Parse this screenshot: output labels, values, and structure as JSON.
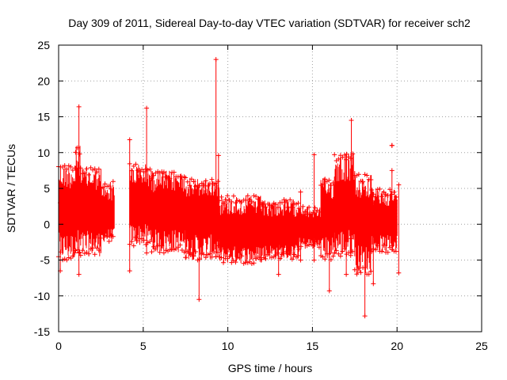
{
  "chart_data": {
    "type": "line",
    "title": "Day 309 of 2011, Sidereal Day-to-day VTEC variation (SDTVAR) for receiver sch2",
    "xlabel": "GPS time / hours",
    "ylabel": "SDTVAR / TECUs",
    "xlim": [
      0,
      25
    ],
    "ylim": [
      -15,
      25
    ],
    "xticks": [
      0,
      5,
      10,
      15,
      20,
      25
    ],
    "yticks": [
      -15,
      -10,
      -5,
      0,
      5,
      10,
      15,
      20,
      25
    ],
    "grid": true,
    "series_color": "#ff0000",
    "series": [
      {
        "name": "SDTVAR",
        "style": "errorbars-cross",
        "segments": [
          {
            "x_start": 0.0,
            "x_end": 1.0,
            "center": 2.0,
            "low": -5.0,
            "high": 8.5
          },
          {
            "x_start": 1.0,
            "x_end": 1.3,
            "center": 2.5,
            "low": -4.5,
            "high": 11.0
          },
          {
            "x_start": 1.3,
            "x_end": 2.5,
            "center": 2.0,
            "low": -4.5,
            "high": 8.0
          },
          {
            "x_start": 2.5,
            "x_end": 3.3,
            "center": 1.0,
            "low": -2.5,
            "high": 6.0
          },
          {
            "x_start": 4.2,
            "x_end": 5.5,
            "center": 2.5,
            "low": -3.0,
            "high": 8.5
          },
          {
            "x_start": 5.5,
            "x_end": 7.5,
            "center": 2.0,
            "low": -4.0,
            "high": 7.5
          },
          {
            "x_start": 7.5,
            "x_end": 9.5,
            "center": 1.5,
            "low": -5.0,
            "high": 6.5
          },
          {
            "x_start": 9.5,
            "x_end": 12.0,
            "center": -1.0,
            "low": -5.5,
            "high": 4.0
          },
          {
            "x_start": 12.0,
            "x_end": 14.2,
            "center": -1.0,
            "low": -5.0,
            "high": 3.5
          },
          {
            "x_start": 14.2,
            "x_end": 15.5,
            "center": -0.5,
            "low": -3.5,
            "high": 2.5
          },
          {
            "x_start": 15.5,
            "x_end": 16.3,
            "center": 1.0,
            "low": -5.0,
            "high": 6.5
          },
          {
            "x_start": 16.3,
            "x_end": 17.5,
            "center": 2.5,
            "low": -4.5,
            "high": 10.0
          },
          {
            "x_start": 17.5,
            "x_end": 18.5,
            "center": 0.5,
            "low": -7.0,
            "high": 7.0
          },
          {
            "x_start": 18.5,
            "x_end": 20.0,
            "center": 0.5,
            "low": -4.0,
            "high": 5.0
          }
        ],
        "extremes": [
          {
            "x": 1.2,
            "low": -4.0,
            "high": 16.4
          },
          {
            "x": 5.2,
            "low": -4.0,
            "high": 16.2
          },
          {
            "x": 9.3,
            "low": -4.5,
            "high": 23.0
          },
          {
            "x": 9.45,
            "low": -3.0,
            "high": 9.6
          },
          {
            "x": 8.3,
            "low": -10.5,
            "high": 1.0
          },
          {
            "x": 4.2,
            "low": -6.5,
            "high": 11.8
          },
          {
            "x": 17.3,
            "low": -2.0,
            "high": 14.5
          },
          {
            "x": 18.1,
            "low": -12.8,
            "high": 1.0
          },
          {
            "x": 0.1,
            "low": -6.5,
            "high": 3.0
          },
          {
            "x": 1.2,
            "low": -7.0,
            "high": 2.0
          },
          {
            "x": 16.0,
            "low": -9.3,
            "high": 1.0
          },
          {
            "x": 15.1,
            "low": -5.0,
            "high": 9.7
          },
          {
            "x": 19.7,
            "low": -3.0,
            "high": 7.5
          },
          {
            "x": 19.7,
            "low": 11.0,
            "high": 11.0
          },
          {
            "x": 20.1,
            "low": -6.8,
            "high": 5.5
          },
          {
            "x": 18.6,
            "low": -8.3,
            "high": 3.0
          },
          {
            "x": 17.0,
            "low": -7.0,
            "high": 9.0
          },
          {
            "x": 14.3,
            "low": -5.0,
            "high": 4.5
          },
          {
            "x": 13.0,
            "low": -7.0,
            "high": 1.0
          }
        ]
      }
    ]
  }
}
